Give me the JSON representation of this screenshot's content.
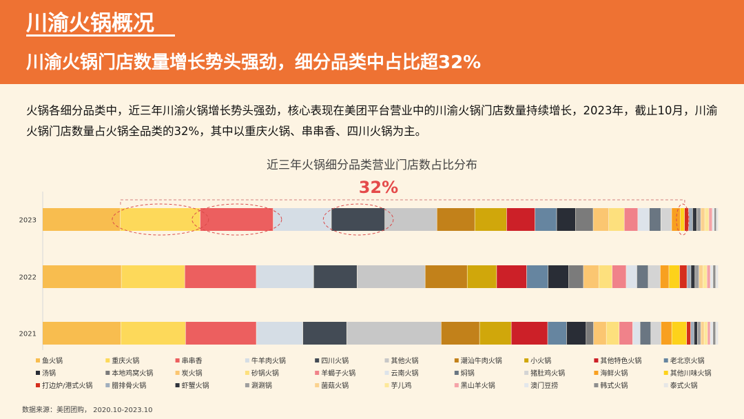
{
  "header": {
    "title": "川渝火锅概况",
    "subtitle": "川渝火锅门店数量增长势头强劲，细分品类中占比超32%"
  },
  "description": "火锅各细分品类中，近三年川渝火锅增长势头强劲，核心表现在美团平台营业中的川渝火锅门店数量持续增长，2023年，截止10月，川渝火锅门店数量占火锅全品类的32%，其中以重庆火锅、串串香、四川火锅为主。",
  "source": "数据来源：美团团购，  2020.10-2023.10",
  "chart_data": {
    "type": "bar",
    "orientation": "horizontal",
    "stacked": true,
    "normalized": true,
    "title": "近三年火锅细分品类营业门店数占比分布",
    "annotation": "32%",
    "categories": [
      "2023",
      "2022",
      "2021"
    ],
    "legend_position": "bottom",
    "series": [
      {
        "name": "鱼火锅",
        "color": "#f8bd4f",
        "values": [
          11.5,
          11.8,
          11.6
        ]
      },
      {
        "name": "重庆火锅",
        "color": "#fdd95a",
        "values": [
          11.8,
          9.5,
          9.6
        ]
      },
      {
        "name": "串串香",
        "color": "#ec5f5f",
        "values": [
          10.8,
          10.7,
          10.5
        ]
      },
      {
        "name": "牛羊肉火锅",
        "color": "#d5dde5",
        "values": [
          8.6,
          8.6,
          6.9
        ]
      },
      {
        "name": "四川火锅",
        "color": "#434b55",
        "values": [
          7.9,
          6.5,
          6.5
        ]
      },
      {
        "name": "其他火锅",
        "color": "#c7c7c7",
        "values": [
          7.7,
          10.2,
          14.0
        ]
      },
      {
        "name": "潮汕牛肉火锅",
        "color": "#c2811a",
        "values": [
          5.6,
          6.3,
          5.7
        ]
      },
      {
        "name": "小火锅",
        "color": "#d0a70b",
        "values": [
          4.7,
          4.4,
          4.7
        ]
      },
      {
        "name": "其他特色火锅",
        "color": "#cc2028",
        "values": [
          4.2,
          4.5,
          5.4
        ]
      },
      {
        "name": "老北京火锅",
        "color": "#6685a0",
        "values": [
          3.2,
          3.2,
          2.8
        ]
      },
      {
        "name": "汤锅",
        "color": "#292d36",
        "values": [
          2.8,
          3.1,
          2.9
        ]
      },
      {
        "name": "本地鸡窝火锅",
        "color": "#7b7b7b",
        "values": [
          2.6,
          2.2,
          1.1
        ]
      },
      {
        "name": "炭火锅",
        "color": "#fbc671",
        "values": [
          2.3,
          2.3,
          1.9
        ]
      },
      {
        "name": "砂锅火锅",
        "color": "#fde07d",
        "values": [
          2.3,
          2.0,
          1.9
        ]
      },
      {
        "name": "羊蝎子火锅",
        "color": "#f0828a",
        "values": [
          2.0,
          2.1,
          2.0
        ]
      },
      {
        "name": "云南火锅",
        "color": "#dde3ea",
        "values": [
          1.7,
          1.6,
          1.1
        ]
      },
      {
        "name": "焖锅",
        "color": "#6a7682",
        "values": [
          1.7,
          1.7,
          1.6
        ]
      },
      {
        "name": "猪肚鸡火锅",
        "color": "#d4d4d4",
        "values": [
          1.6,
          1.8,
          1.5
        ]
      },
      {
        "name": "海鲜火锅",
        "color": "#f8a020",
        "values": [
          1.3,
          1.3,
          1.6
        ]
      },
      {
        "name": "其他川味火锅",
        "color": "#fdd21b",
        "values": [
          0.6,
          1.6,
          2.2
        ]
      },
      {
        "name": "打边炉/港式火锅",
        "color": "#d52e1d",
        "values": [
          0.6,
          1.1,
          0.6
        ]
      },
      {
        "name": "腊排骨火锅",
        "color": "#a0aebd",
        "values": [
          0.6,
          0.6,
          0.5
        ]
      },
      {
        "name": "虾蟹火锅",
        "color": "#30343c",
        "values": [
          0.6,
          0.6,
          0.5
        ]
      },
      {
        "name": "涮涮锅",
        "color": "#9e9e9e",
        "values": [
          0.6,
          0.6,
          0.5
        ]
      },
      {
        "name": "菌菇火锅",
        "color": "#fbd28f",
        "values": [
          0.6,
          0.6,
          0.5
        ]
      },
      {
        "name": "芋儿鸡",
        "color": "#fde89a",
        "values": [
          0.6,
          0.6,
          0.5
        ]
      },
      {
        "name": "黑山羊火锅",
        "color": "#f5a3a8",
        "values": [
          0.5,
          0.5,
          0.4
        ]
      },
      {
        "name": "澳门豆捞",
        "color": "#e3e7ec",
        "values": [
          0.3,
          0.4,
          0.4
        ]
      },
      {
        "name": "韩式火锅",
        "color": "#8e8e8e",
        "values": [
          0.3,
          0.4,
          0.4
        ]
      },
      {
        "name": "泰式火锅",
        "color": "#e6e6e6",
        "values": [
          0.3,
          0.4,
          0.4
        ]
      }
    ]
  }
}
